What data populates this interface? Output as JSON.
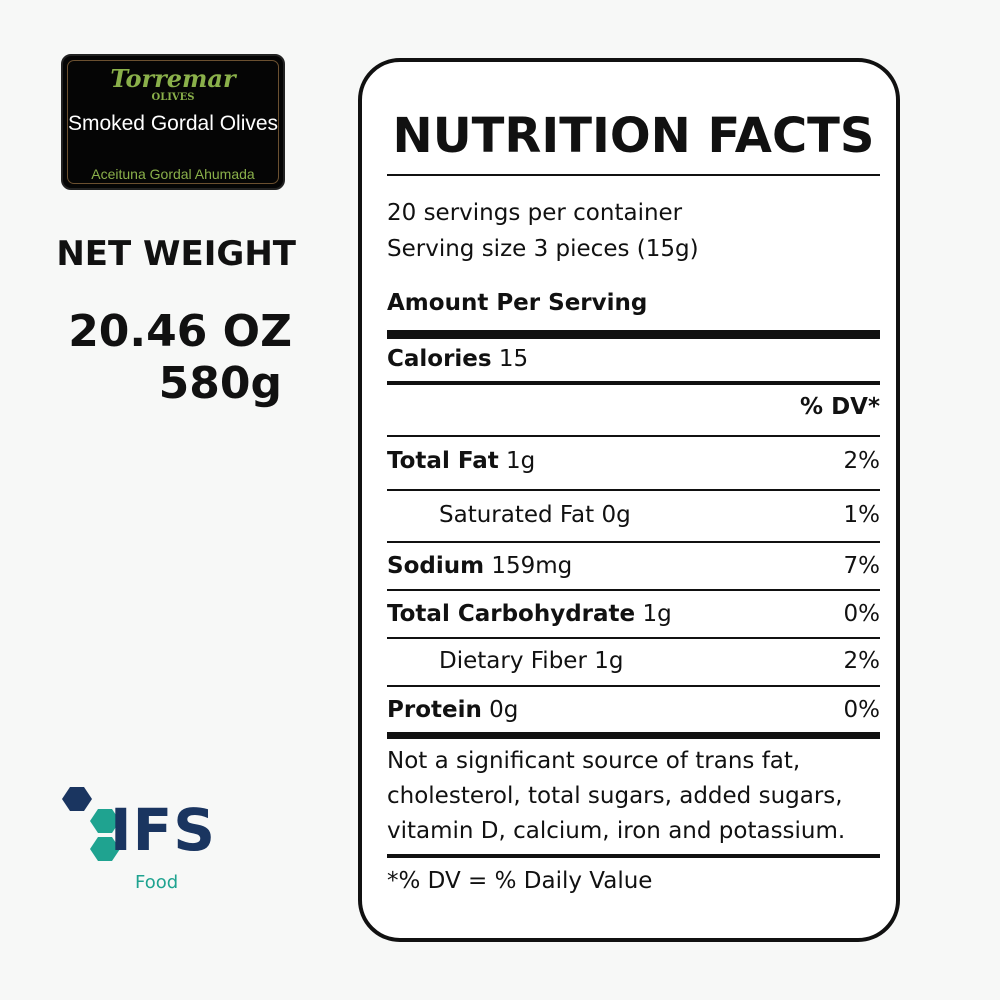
{
  "label": {
    "brand": "Torremar",
    "brand_sub": "OLIVES",
    "product": "Smoked Gordal Olives",
    "product_es": "Aceituna Gordal Ahumada"
  },
  "net_weight": {
    "title": "NET WEIGHT",
    "oz": "20.46 OZ",
    "grams": "580g"
  },
  "nutrition": {
    "title": "NUTRITION FACTS",
    "servings": "20 servings per container",
    "serving_size": "Serving size 3 pieces (15g)",
    "amount_per_serving": "Amount Per Serving",
    "calories_label": "Calories",
    "calories_value": "15",
    "dv_header": "% DV*",
    "rows": [
      {
        "name": "Total Fat",
        "amount": "1g",
        "dv": "2%"
      },
      {
        "name": "Saturated Fat",
        "amount": "0g",
        "dv": "1%"
      },
      {
        "name": "Sodium",
        "amount": "159mg",
        "dv": "7%"
      },
      {
        "name": "Total Carbohydrate",
        "amount": "1g",
        "dv": "0%"
      },
      {
        "name": "Dietary Fiber",
        "amount": "1g",
        "dv": "2%"
      },
      {
        "name": "Protein",
        "amount": "0g",
        "dv": "0%"
      }
    ],
    "note_lines": [
      "Not a significant source of trans fat,",
      "cholesterol, total sugars, added sugars,",
      "vitamin D, calcium, iron and potassium."
    ],
    "dv_note": "*% DV = % Daily Value"
  },
  "certification": {
    "name": "IFS",
    "sub": "Food",
    "colors": {
      "navy": "#1a3560",
      "teal": "#1fa390"
    }
  }
}
